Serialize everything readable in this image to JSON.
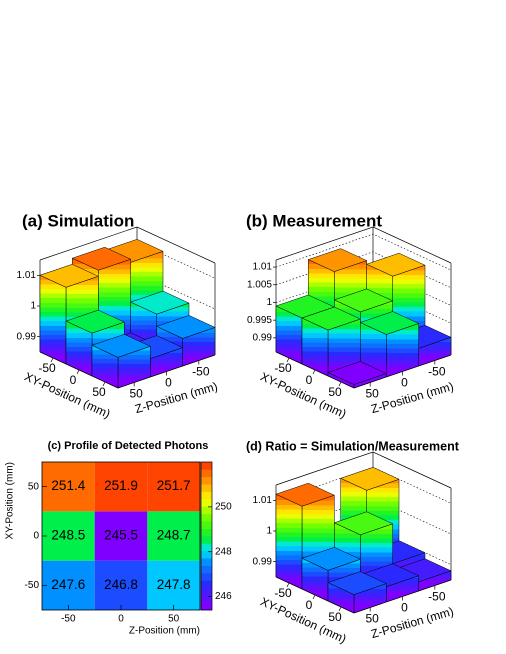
{
  "chart_data": [
    {
      "type": "lego",
      "title": "(a) Simulation",
      "xlabel": "XY-Position (mm)",
      "ylabel": "Z-Position (mm)",
      "xlim": [
        -75,
        75
      ],
      "xticks": [
        -50,
        0,
        50
      ],
      "ylim": [
        -75,
        75
      ],
      "yticks": [
        -50,
        0,
        50
      ],
      "zlim": [
        0.985,
        1.015
      ],
      "zticks": [
        0.99,
        1,
        1.01
      ],
      "values": [
        [
          1.011,
          1.012,
          1.01
        ],
        [
          0.998,
          0.988,
          0.999
        ],
        [
          0.994,
          0.991,
          0.995
        ]
      ]
    },
    {
      "type": "lego",
      "title": "(b) Measurement",
      "xlabel": "XY-Position (mm)",
      "ylabel": "Z-Position (mm)",
      "xlim": [
        -75,
        75
      ],
      "xticks": [
        -50,
        0,
        50
      ],
      "ylim": [
        -75,
        75
      ],
      "yticks": [
        -50,
        0,
        50
      ],
      "zlim": [
        0.986,
        1.012
      ],
      "zticks": [
        0.99,
        0.995,
        1,
        1.005,
        1.01
      ],
      "values": [
        [
          1.002,
          1.009,
          0.999
        ],
        [
          1.008,
          1.001,
          0.999
        ],
        [
          0.991,
          0.998,
          0.987
        ]
      ]
    },
    {
      "type": "heatmap",
      "title": "(c) Profile of Detected Photons",
      "xlabel": "Z-Position (mm)",
      "ylabel": "XY-Position (mm)",
      "xlim": [
        -75,
        75
      ],
      "xticks": [
        -50,
        0,
        50
      ],
      "ylim": [
        -75,
        75
      ],
      "yticks": [
        -50,
        0,
        50
      ],
      "zlim": [
        245.4,
        252
      ],
      "zticks": [
        246,
        248,
        250
      ],
      "values": [
        [
          247.6,
          246.8,
          247.8
        ],
        [
          248.5,
          245.5,
          248.7
        ],
        [
          251.4,
          251.9,
          251.7
        ]
      ]
    },
    {
      "type": "lego",
      "title": "(d) Ratio = Simulation/Measurement",
      "xlabel": "XY-Position (mm)",
      "ylabel": "Z-Position (mm)",
      "xlim": [
        -75,
        75
      ],
      "xticks": [
        -50,
        0,
        50
      ],
      "ylim": [
        -75,
        75
      ],
      "yticks": [
        -50,
        0,
        50
      ],
      "zlim": [
        0.985,
        1.015
      ],
      "zticks": [
        0.99,
        1,
        1.01
      ],
      "values": [
        [
          1.01,
          0.996,
          1.012
        ],
        [
          0.99,
          1.003,
          0.995
        ],
        [
          0.988,
          0.99,
          0.991
        ]
      ]
    }
  ]
}
